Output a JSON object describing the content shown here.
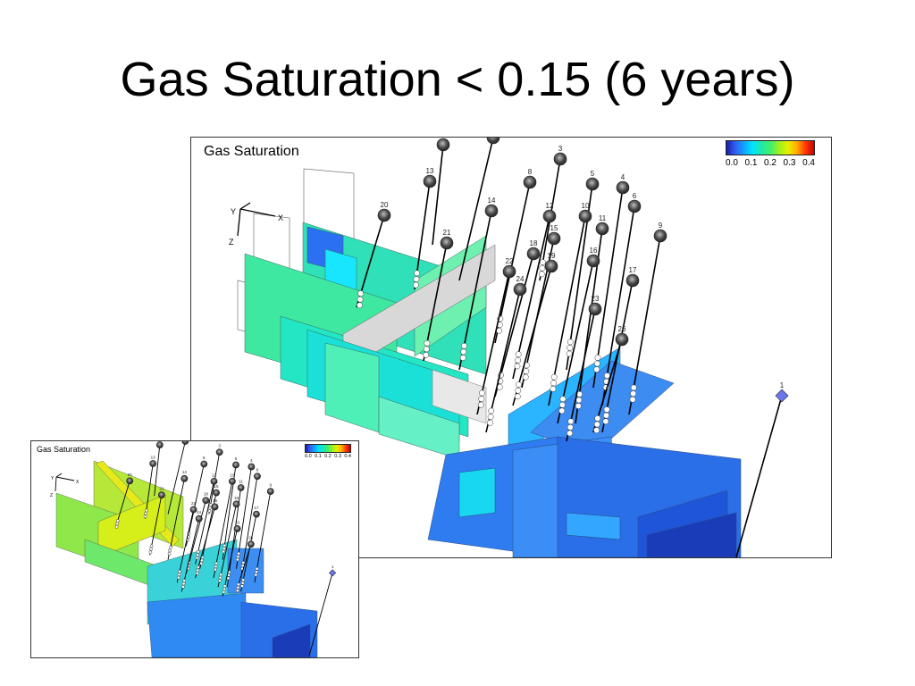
{
  "slide": {
    "title": "Gas Saturation < 0.15 (6 years)"
  },
  "main_panel": {
    "label": "Gas Saturation"
  },
  "inset_panel": {
    "label": "Gas Saturation"
  },
  "colorbar": {
    "ticks": [
      "0.0",
      "0.1",
      "0.2",
      "0.3",
      "0.4"
    ],
    "colors": [
      "#1a1aa8",
      "#2f5ff0",
      "#12a3ff",
      "#00e5ff",
      "#22e6a8",
      "#3ef070",
      "#9cf020",
      "#e6f000",
      "#ffb000",
      "#ff3b00",
      "#c80000"
    ]
  },
  "axes_triad": {
    "labels": [
      "Y",
      "X",
      "Z"
    ]
  },
  "wells": [
    "3",
    "13",
    "8",
    "5",
    "4",
    "6",
    "14",
    "20",
    "12",
    "10",
    "11",
    "15",
    "9",
    "21",
    "18",
    "19",
    "16",
    "22",
    "24",
    "17",
    "23",
    "26",
    "1"
  ],
  "colors": {
    "blue": "#2f73ee",
    "teal": "#22e6b0",
    "green": "#9be23a",
    "marker": "#444444"
  }
}
